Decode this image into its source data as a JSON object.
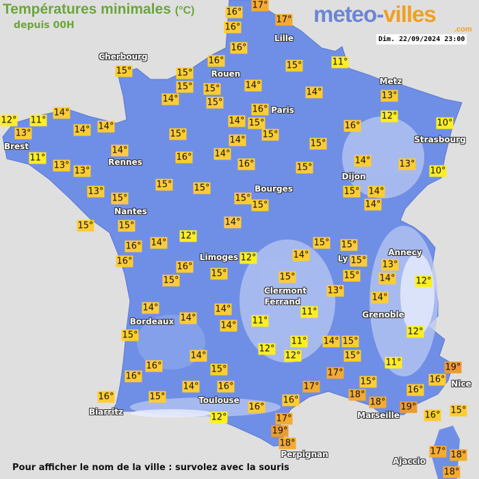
{
  "header": {
    "title": "Températures minimales",
    "title_unit": "(°C)",
    "subtitle": "depuis 00H",
    "logo_part1": "meteo-",
    "logo_part2": "villes",
    "logo_suffix": ".com",
    "datetime": "Dim. 22/09/2024 23:00"
  },
  "footer": {
    "hint": "Pour afficher le nom de la ville : survolez avec la souris"
  },
  "colors": {
    "land": "#6f8fe6",
    "sea": "#e0dfdf",
    "cold_label": "#ffee22",
    "mild_label": "#ffcc33",
    "warm_label": "#f5aa30",
    "hot_label": "#ee9933",
    "title": "#6aa63a"
  },
  "cities": [
    "Cherbourg",
    "Rouen",
    "Lille",
    "Paris",
    "Metz",
    "Strasbourg",
    "Brest",
    "Rennes",
    "Nantes",
    "Bourges",
    "Dijon",
    "Limoges",
    "Ly",
    "Annecy",
    "Clermont",
    "Ferrand",
    "Grenoble",
    "Bordeaux",
    "Toulouse",
    "Biarritz",
    "Marseille",
    "Nice",
    "Perpignan",
    "Ajaccio"
  ],
  "temperatures": [
    "16°",
    "17°",
    "16°",
    "17°",
    "16°",
    "16°",
    "15°",
    "15°",
    "15°",
    "15°",
    "15°",
    "14°",
    "14°",
    "15°",
    "11°",
    "14°",
    "13°",
    "12°",
    "16°",
    "14°",
    "15°",
    "15°",
    "16°",
    "10°",
    "14°",
    "12°",
    "11°",
    "13°",
    "14°",
    "14°",
    "15°",
    "14°",
    "15°",
    "11°",
    "13°",
    "13°",
    "14°",
    "16°",
    "14°",
    "16°",
    "15°",
    "14°",
    "13°",
    "10°",
    "13°",
    "15°",
    "15°",
    "15°",
    "15°",
    "15°",
    "15°",
    "14°",
    "14°",
    "15°",
    "15°",
    "14°",
    "14°",
    "12°",
    "15°",
    "15°",
    "16°",
    "16°",
    "16°",
    "15°",
    "12°",
    "14°",
    "15°",
    "15°",
    "13°",
    "14°",
    "12°",
    "15°",
    "15°",
    "13°",
    "14°",
    "14°",
    "14°",
    "14°",
    "14°",
    "11°",
    "11°",
    "15°",
    "12°",
    "11°",
    "12°",
    "14°",
    "15°",
    "15°",
    "12°",
    "14°",
    "15°",
    "11°",
    "16°",
    "16°",
    "17°",
    "19°",
    "16°",
    "14°",
    "16°",
    "17°",
    "15°",
    "18°",
    "18°",
    "16°",
    "16°",
    "15°",
    "16°",
    "16°",
    "19°",
    "16°",
    "15°",
    "17°",
    "19°",
    "12°",
    "18°",
    "17°",
    "18°",
    "18°"
  ]
}
